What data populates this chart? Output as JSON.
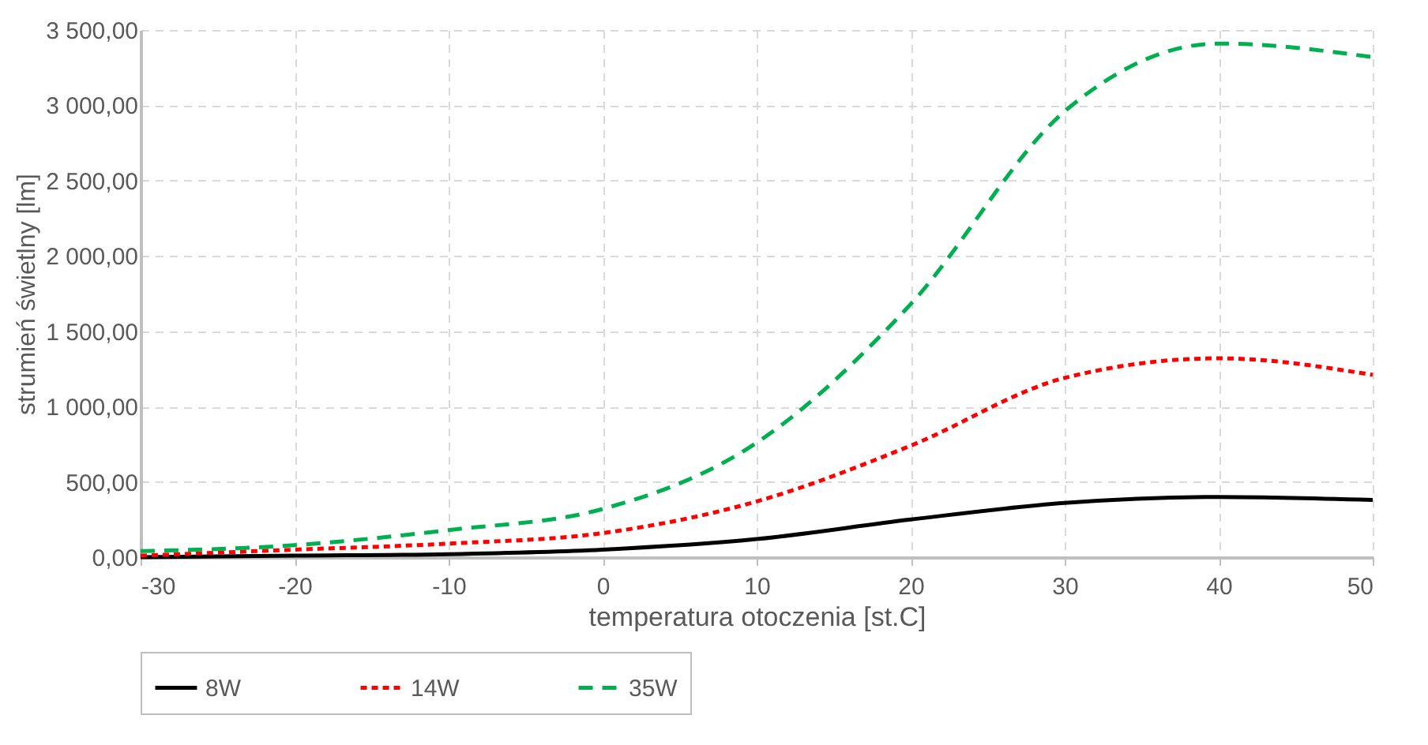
{
  "chart_data": {
    "type": "line",
    "xlabel": "temperatura otoczenia [st.C]",
    "ylabel": "strumień świetlny [lm]",
    "x": [
      -30,
      -20,
      -10,
      0,
      10,
      20,
      30,
      40,
      50
    ],
    "series": [
      {
        "name": "8W",
        "color": "#000000",
        "line_style": "solid",
        "values": [
          0,
          10,
          20,
          50,
          120,
          250,
          360,
          400,
          380
        ]
      },
      {
        "name": "14W",
        "color": "#ff0000",
        "line_style": "dotted",
        "values": [
          10,
          50,
          90,
          160,
          370,
          740,
          1190,
          1320,
          1210
        ]
      },
      {
        "name": "35W",
        "color": "#00b050",
        "line_style": "dashed",
        "values": [
          40,
          80,
          180,
          320,
          760,
          1680,
          2960,
          3410,
          3320
        ]
      }
    ],
    "xlim": [
      -30,
      50
    ],
    "xticks": [
      -30,
      -20,
      -10,
      0,
      10,
      20,
      30,
      40,
      50
    ],
    "ylim": [
      0,
      3500
    ],
    "yticks": [
      {
        "value": 0,
        "label": "0,00"
      },
      {
        "value": 500,
        "label": "500,00"
      },
      {
        "value": 1000,
        "label": "1 000,00"
      },
      {
        "value": 1500,
        "label": "1 500,00"
      },
      {
        "value": 2000,
        "label": "2 000,00"
      },
      {
        "value": 2500,
        "label": "2 500,00"
      },
      {
        "value": 3000,
        "label": "3 000,00"
      },
      {
        "value": 3500,
        "label": "3 500,00"
      }
    ],
    "grid": true,
    "legend": "bottom",
    "marker": "none"
  }
}
